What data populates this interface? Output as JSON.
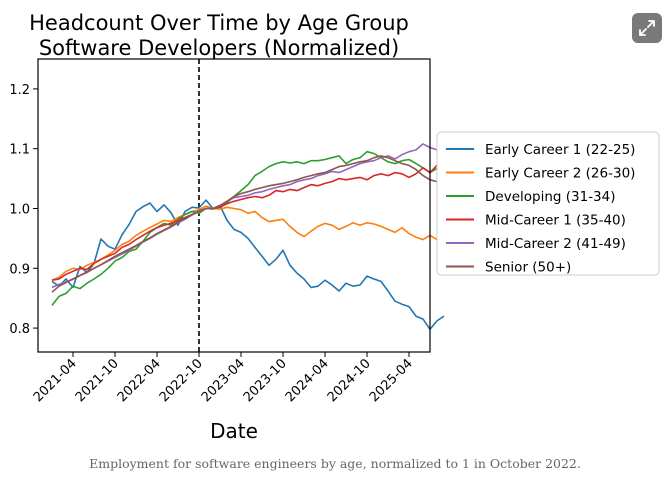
{
  "caption": "Employment for software engineers by age, normalized to 1 in October 2022.",
  "expand_icon": "expand-diagonal-icon",
  "chart_data": {
    "type": "line",
    "title": "Headcount Over Time by Age Group",
    "subtitle": "Software Developers (Normalized)",
    "xlabel": "Date",
    "ylabel": "",
    "x_start": "2021-01",
    "x_end": "2025-07",
    "xlim": [
      "2020-11",
      "2025-07"
    ],
    "ylim": [
      0.76,
      1.25
    ],
    "yticks": [
      0.8,
      0.9,
      1.0,
      1.1,
      1.2
    ],
    "ytick_labels": [
      "0.8",
      "0.9",
      "1.0",
      "1.1",
      "1.2"
    ],
    "xticks": [
      "2021-04",
      "2021-10",
      "2022-04",
      "2022-10",
      "2023-04",
      "2023-10",
      "2024-04",
      "2024-10",
      "2025-04"
    ],
    "xtick_labels": [
      "2021-04",
      "2021-10",
      "2022-04",
      "2022-10",
      "2023-04",
      "2023-10",
      "2024-04",
      "2024-10",
      "2025-04"
    ],
    "reference_line": "2022-10",
    "grid": false,
    "legend_position": "right",
    "series": [
      {
        "name": "Early Career 1 (22-25)",
        "color": "#1f77b4",
        "values": [
          0.878,
          0.87,
          0.882,
          0.868,
          0.903,
          0.893,
          0.908,
          0.949,
          0.937,
          0.932,
          0.956,
          0.973,
          0.995,
          1.003,
          1.009,
          0.995,
          1.006,
          0.993,
          0.972,
          0.995,
          1.002,
          1.001,
          1.014,
          1.0,
          1.005,
          0.98,
          0.965,
          0.96,
          0.95,
          0.935,
          0.92,
          0.905,
          0.915,
          0.93,
          0.905,
          0.892,
          0.882,
          0.868,
          0.87,
          0.88,
          0.872,
          0.862,
          0.875,
          0.87,
          0.872,
          0.887,
          0.882,
          0.878,
          0.862,
          0.845,
          0.84,
          0.836,
          0.82,
          0.815,
          0.798,
          0.812,
          0.82
        ]
      },
      {
        "name": "Early Career 2 (26-30)",
        "color": "#ff7f0e",
        "values": [
          0.88,
          0.885,
          0.895,
          0.9,
          0.898,
          0.905,
          0.91,
          0.915,
          0.922,
          0.93,
          0.94,
          0.945,
          0.955,
          0.962,
          0.968,
          0.974,
          0.98,
          0.978,
          0.985,
          0.99,
          0.995,
          0.998,
          1.004,
          1.0,
          0.999,
          1.002,
          1.0,
          0.998,
          0.992,
          0.995,
          0.985,
          0.978,
          0.98,
          0.982,
          0.97,
          0.96,
          0.953,
          0.962,
          0.97,
          0.975,
          0.972,
          0.965,
          0.97,
          0.976,
          0.972,
          0.976,
          0.974,
          0.97,
          0.965,
          0.96,
          0.968,
          0.958,
          0.952,
          0.948,
          0.955,
          0.948,
          0.955
        ]
      },
      {
        "name": "Developing (31-34)",
        "color": "#2ca02c",
        "values": [
          0.838,
          0.853,
          0.858,
          0.87,
          0.866,
          0.875,
          0.882,
          0.89,
          0.9,
          0.912,
          0.918,
          0.928,
          0.932,
          0.945,
          0.96,
          0.968,
          0.975,
          0.972,
          0.982,
          0.99,
          0.995,
          0.992,
          1.0,
          0.999,
          1.003,
          1.01,
          1.02,
          1.03,
          1.04,
          1.055,
          1.062,
          1.07,
          1.075,
          1.078,
          1.076,
          1.078,
          1.075,
          1.08,
          1.08,
          1.082,
          1.085,
          1.088,
          1.075,
          1.082,
          1.085,
          1.095,
          1.092,
          1.085,
          1.078,
          1.075,
          1.08,
          1.082,
          1.075,
          1.068,
          1.06,
          1.067,
          1.065
        ]
      },
      {
        "name": "Mid-Career 1 (35-40)",
        "color": "#d62728",
        "values": [
          0.88,
          0.882,
          0.89,
          0.895,
          0.9,
          0.898,
          0.908,
          0.915,
          0.92,
          0.925,
          0.935,
          0.94,
          0.948,
          0.955,
          0.962,
          0.968,
          0.972,
          0.975,
          0.98,
          0.985,
          0.99,
          0.995,
          1.0,
          1.0,
          1.002,
          1.008,
          1.012,
          1.015,
          1.018,
          1.02,
          1.018,
          1.022,
          1.03,
          1.028,
          1.032,
          1.03,
          1.035,
          1.04,
          1.038,
          1.042,
          1.045,
          1.05,
          1.048,
          1.05,
          1.052,
          1.048,
          1.055,
          1.058,
          1.055,
          1.06,
          1.058,
          1.052,
          1.058,
          1.068,
          1.06,
          1.072,
          1.068
        ]
      },
      {
        "name": "Mid-Career 2 (41-49)",
        "color": "#9467bd",
        "values": [
          0.868,
          0.873,
          0.877,
          0.882,
          0.888,
          0.893,
          0.9,
          0.906,
          0.912,
          0.918,
          0.924,
          0.93,
          0.937,
          0.944,
          0.95,
          0.957,
          0.963,
          0.969,
          0.976,
          0.982,
          0.989,
          0.995,
          1.0,
          1.0,
          1.005,
          1.012,
          1.018,
          1.02,
          1.022,
          1.026,
          1.028,
          1.032,
          1.035,
          1.038,
          1.04,
          1.045,
          1.048,
          1.05,
          1.055,
          1.058,
          1.062,
          1.06,
          1.065,
          1.07,
          1.075,
          1.078,
          1.08,
          1.085,
          1.088,
          1.083,
          1.09,
          1.095,
          1.098,
          1.108,
          1.102,
          1.098,
          1.105
        ]
      },
      {
        "name": "Senior (50+)",
        "color": "#8c564b",
        "values": [
          0.86,
          0.87,
          0.876,
          0.882,
          0.888,
          0.894,
          0.9,
          0.906,
          0.913,
          0.92,
          0.926,
          0.932,
          0.938,
          0.945,
          0.951,
          0.958,
          0.964,
          0.97,
          0.977,
          0.983,
          0.99,
          0.996,
          1.0,
          1.0,
          1.005,
          1.012,
          1.02,
          1.025,
          1.028,
          1.032,
          1.035,
          1.038,
          1.04,
          1.042,
          1.045,
          1.048,
          1.052,
          1.055,
          1.058,
          1.06,
          1.065,
          1.07,
          1.072,
          1.075,
          1.078,
          1.08,
          1.085,
          1.088,
          1.085,
          1.08,
          1.075,
          1.072,
          1.065,
          1.055,
          1.048,
          1.045,
          1.042
        ]
      }
    ]
  }
}
